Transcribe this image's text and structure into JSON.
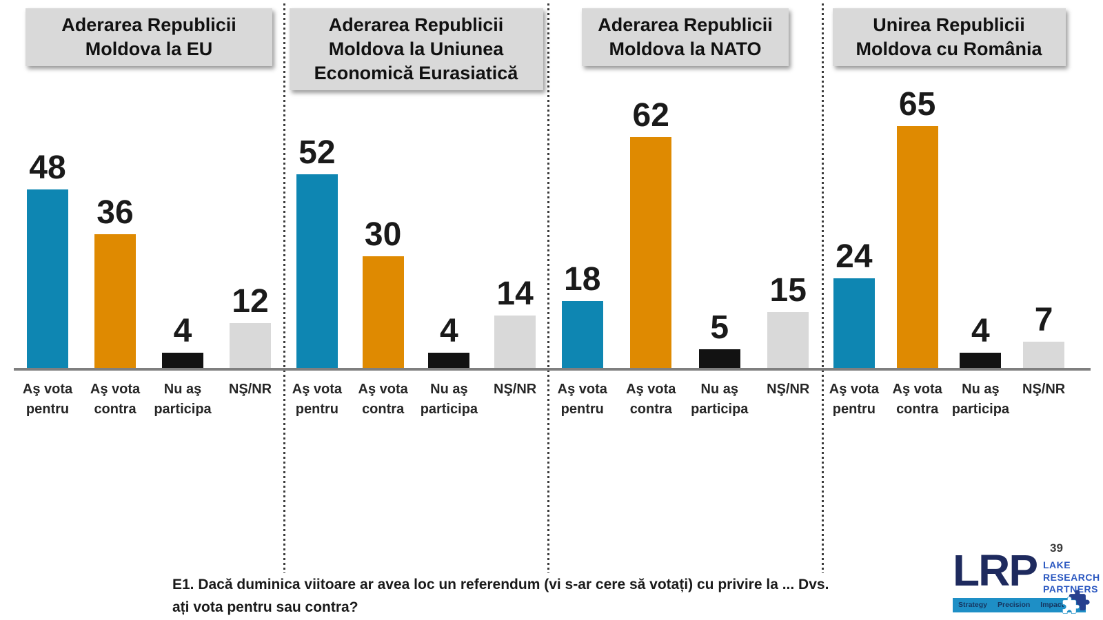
{
  "page": {
    "page_number": "39"
  },
  "footnote": {
    "line1": "E1. Dacă duminica viitoare ar avea loc un referendum (vi s-ar cere să votați) cu privire la ... Dvs.",
    "line2": "ați vota pentru sau contra?"
  },
  "logo": {
    "acronym": "LRP",
    "name_lines": [
      "LAKE",
      "RESEARCH",
      "PARTNERS"
    ],
    "tagline_words": [
      "Strategy",
      "Precision",
      "Impact"
    ],
    "navy": "#1e2a5e",
    "royal_blue": "#2a57c0",
    "bar_blue": "#1e8fc6"
  },
  "chart_data": {
    "type": "bar",
    "layout": "four side-by-side panels, shared baseline, value labels above bars, no y-axis, no gridlines, dotted vertical separators between panels",
    "categories": [
      "Aş vota pentru",
      "Aş vota contra",
      "Nu aş participa",
      "NŞ/NR"
    ],
    "category_lines": [
      [
        "Aş vota",
        "pentru"
      ],
      [
        "Aş vota",
        "contra"
      ],
      [
        "Nu aş",
        "participa"
      ],
      [
        "NŞ/NR"
      ]
    ],
    "panels": [
      {
        "title": "Aderarea Republicii Moldova la EU",
        "title_lines": [
          "Aderarea Republicii",
          "Moldova la EU"
        ],
        "values": [
          48,
          36,
          4,
          12
        ]
      },
      {
        "title": "Aderarea Republicii Moldova la Uniunea Economică Eurasiatică",
        "title_lines": [
          "Aderarea Republicii",
          "Moldova la Uniunea",
          "Economică Eurasiatică"
        ],
        "values": [
          52,
          30,
          4,
          14
        ]
      },
      {
        "title": "Aderarea Republicii Moldova la NATO",
        "title_lines": [
          "Aderarea Republicii",
          "Moldova la NATO"
        ],
        "values": [
          18,
          62,
          5,
          15
        ]
      },
      {
        "title": "Unirea Republicii Moldova cu România",
        "title_lines": [
          "Unirea Republicii",
          "Moldova cu România"
        ],
        "values": [
          24,
          65,
          4,
          7
        ]
      }
    ],
    "bar_colors": [
      "#0e86b2",
      "#df8a01",
      "#121212",
      "#d9d9d9"
    ],
    "title_box_color": "#d9d9d9",
    "baseline_color": "#7f7f7f",
    "ylim": [
      0,
      70
    ],
    "units": "percent"
  }
}
